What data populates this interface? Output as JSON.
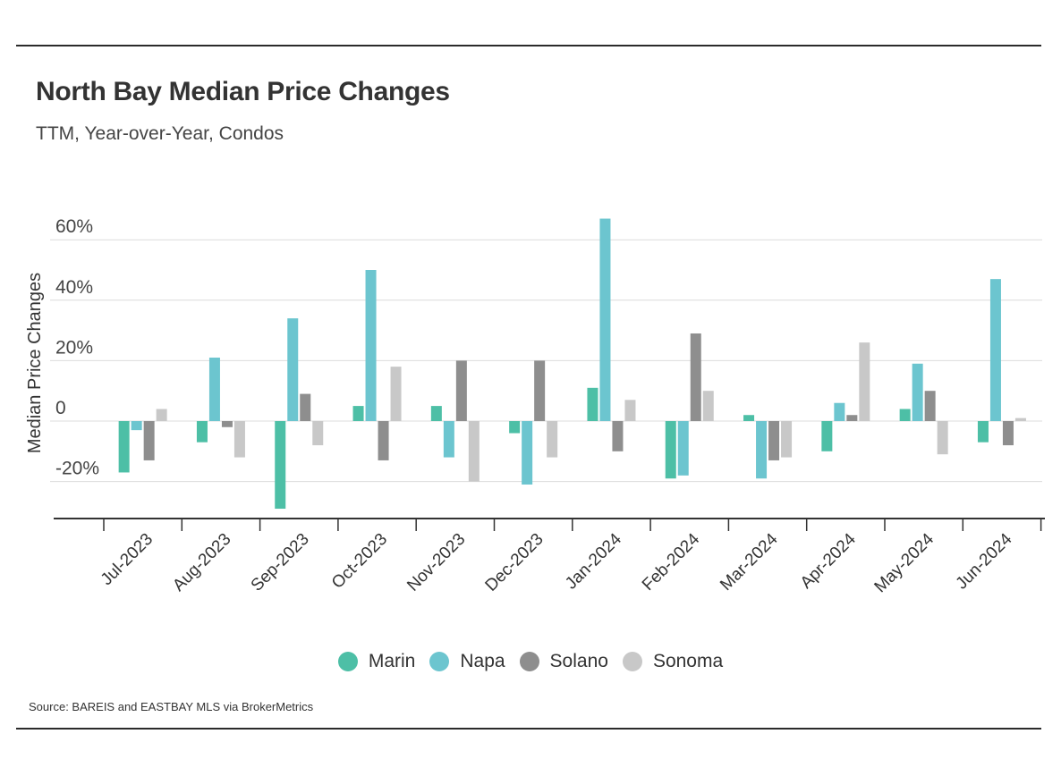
{
  "title": "North Bay Median Price Changes",
  "subtitle": "TTM, Year-over-Year, Condos",
  "source": "Source:  BAREIS and EASTBAY MLS via BrokerMetrics",
  "colors": {
    "Marin": "#4dbfa6",
    "Napa": "#6cc5cf",
    "Solano": "#8e8e8e",
    "Sonoma": "#c8c8c8"
  },
  "chart_data": {
    "type": "bar",
    "ylabel": "Median Price Changes",
    "xlabel": "",
    "ylim": [
      -32,
      68
    ],
    "yticks": [
      -20,
      0,
      20,
      40,
      60
    ],
    "ytick_labels": [
      "-20%",
      "0",
      "20%",
      "40%",
      "60%"
    ],
    "grid": true,
    "legend": "bottom",
    "categories": [
      "Jul-2023",
      "Aug-2023",
      "Sep-2023",
      "Oct-2023",
      "Nov-2023",
      "Dec-2023",
      "Jan-2024",
      "Feb-2024",
      "Mar-2024",
      "Apr-2024",
      "May-2024",
      "Jun-2024"
    ],
    "series": [
      {
        "name": "Marin",
        "values": [
          -17,
          -7,
          -29,
          5,
          5,
          -4,
          11,
          -19,
          2,
          -10,
          4,
          -7
        ]
      },
      {
        "name": "Napa",
        "values": [
          -3,
          21,
          34,
          50,
          -12,
          -21,
          67,
          -18,
          -19,
          6,
          19,
          47
        ]
      },
      {
        "name": "Solano",
        "values": [
          -13,
          -2,
          9,
          -13,
          20,
          20,
          -10,
          29,
          -13,
          2,
          10,
          -8
        ]
      },
      {
        "name": "Sonoma",
        "values": [
          4,
          -12,
          -8,
          18,
          -20,
          -12,
          7,
          10,
          -12,
          26,
          -11,
          1
        ]
      }
    ]
  }
}
